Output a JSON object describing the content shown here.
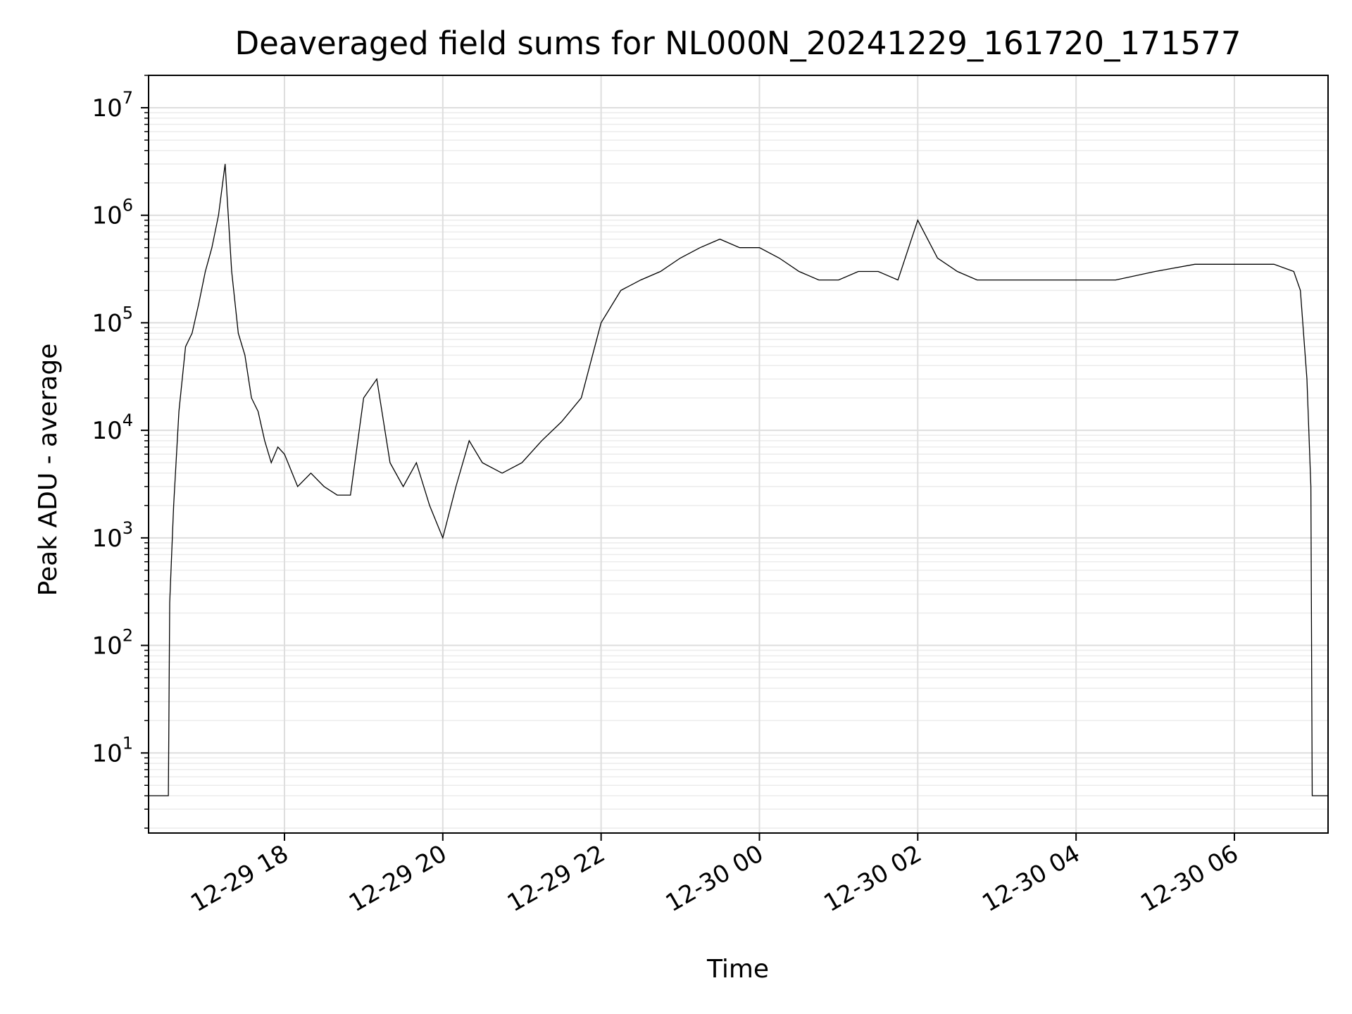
{
  "chart_data": {
    "type": "line",
    "title": "Deaveraged field sums for NL000N_20241229_161720_171577",
    "xlabel": "Time",
    "ylabel": "Peak ADU - average",
    "yscale": "log",
    "ylim": [
      1.8,
      20000000
    ],
    "xlim": [
      "2024-12-29 16:17",
      "2024-12-30 07:11"
    ],
    "grid": true,
    "line_color": "#000000",
    "x_ticks": [
      {
        "value": "2024-12-29 18:00",
        "label": "12-29 18"
      },
      {
        "value": "2024-12-29 20:00",
        "label": "12-29 20"
      },
      {
        "value": "2024-12-29 22:00",
        "label": "12-29 22"
      },
      {
        "value": "2024-12-30 00:00",
        "label": "12-30 00"
      },
      {
        "value": "2024-12-30 02:00",
        "label": "12-30 02"
      },
      {
        "value": "2024-12-30 04:00",
        "label": "12-30 04"
      },
      {
        "value": "2024-12-30 06:00",
        "label": "12-30 06"
      }
    ],
    "y_ticks": [
      {
        "value": 10,
        "base": "10",
        "exp": "1"
      },
      {
        "value": 100,
        "base": "10",
        "exp": "2"
      },
      {
        "value": 1000,
        "base": "10",
        "exp": "3"
      },
      {
        "value": 10000,
        "base": "10",
        "exp": "4"
      },
      {
        "value": 100000,
        "base": "10",
        "exp": "5"
      },
      {
        "value": 1000000,
        "base": "10",
        "exp": "6"
      },
      {
        "value": 10000000,
        "base": "10",
        "exp": "7"
      }
    ],
    "series": [
      {
        "x": [
          "2024-12-29 16:17",
          "2024-12-29 16:32",
          "2024-12-29 16:33",
          "2024-12-29 16:36",
          "2024-12-29 16:40",
          "2024-12-29 16:45",
          "2024-12-29 16:50",
          "2024-12-29 16:55",
          "2024-12-29 17:00",
          "2024-12-29 17:05",
          "2024-12-29 17:10",
          "2024-12-29 17:15",
          "2024-12-29 17:20",
          "2024-12-29 17:25",
          "2024-12-29 17:30",
          "2024-12-29 17:35",
          "2024-12-29 17:40",
          "2024-12-29 17:45",
          "2024-12-29 17:50",
          "2024-12-29 17:55",
          "2024-12-29 18:00",
          "2024-12-29 18:10",
          "2024-12-29 18:20",
          "2024-12-29 18:30",
          "2024-12-29 18:40",
          "2024-12-29 18:50",
          "2024-12-29 19:00",
          "2024-12-29 19:10",
          "2024-12-29 19:20",
          "2024-12-29 19:30",
          "2024-12-29 19:40",
          "2024-12-29 19:50",
          "2024-12-29 20:00",
          "2024-12-29 20:10",
          "2024-12-29 20:20",
          "2024-12-29 20:30",
          "2024-12-29 20:45",
          "2024-12-29 21:00",
          "2024-12-29 21:15",
          "2024-12-29 21:30",
          "2024-12-29 21:45",
          "2024-12-29 22:00",
          "2024-12-29 22:15",
          "2024-12-29 22:30",
          "2024-12-29 22:45",
          "2024-12-29 23:00",
          "2024-12-29 23:15",
          "2024-12-29 23:30",
          "2024-12-29 23:45",
          "2024-12-30 00:00",
          "2024-12-30 00:15",
          "2024-12-30 00:30",
          "2024-12-30 00:45",
          "2024-12-30 01:00",
          "2024-12-30 01:15",
          "2024-12-30 01:30",
          "2024-12-30 01:45",
          "2024-12-30 02:00",
          "2024-12-30 02:15",
          "2024-12-30 02:30",
          "2024-12-30 02:45",
          "2024-12-30 03:00",
          "2024-12-30 03:30",
          "2024-12-30 04:00",
          "2024-12-30 04:30",
          "2024-12-30 05:00",
          "2024-12-30 05:30",
          "2024-12-30 06:00",
          "2024-12-30 06:30",
          "2024-12-30 06:45",
          "2024-12-30 06:50",
          "2024-12-30 06:55",
          "2024-12-30 06:58",
          "2024-12-30 06:59",
          "2024-12-30 07:11"
        ],
        "values": [
          4,
          4,
          250,
          2000,
          15000,
          60000,
          80000,
          150000,
          300000,
          500000,
          1000000,
          3000000,
          300000,
          80000,
          50000,
          20000,
          15000,
          8000,
          5000,
          7000,
          6000,
          3000,
          4000,
          3000,
          2500,
          2500,
          20000,
          30000,
          5000,
          3000,
          5000,
          2000,
          1000,
          3000,
          8000,
          5000,
          4000,
          5000,
          8000,
          12000,
          20000,
          100000,
          200000,
          250000,
          300000,
          400000,
          500000,
          600000,
          500000,
          500000,
          400000,
          300000,
          250000,
          250000,
          300000,
          300000,
          250000,
          900000,
          400000,
          300000,
          250000,
          250000,
          250000,
          250000,
          250000,
          300000,
          350000,
          350000,
          350000,
          300000,
          200000,
          30000,
          3000,
          4,
          4
        ]
      }
    ]
  }
}
